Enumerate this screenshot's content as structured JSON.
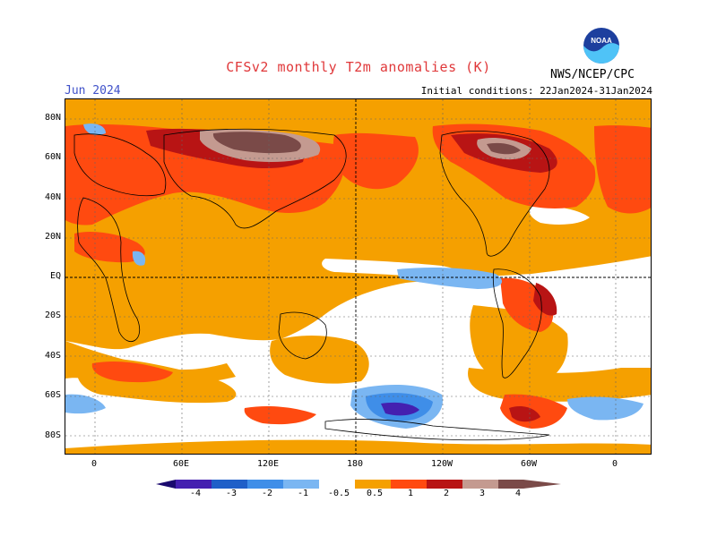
{
  "header": {
    "title": "CFSv2 monthly T2m anomalies (K)",
    "month": "Jun 2024",
    "initial_conditions": "Initial conditions: 22Jan2024-31Jan2024",
    "agency": "NWS/NCEP/CPC",
    "logo_text": "NOAA"
  },
  "axes": {
    "lat_labels": [
      "80N",
      "60N",
      "40N",
      "20N",
      "EQ",
      "20S",
      "40S",
      "60S",
      "80S"
    ],
    "lon_labels": [
      "0",
      "60E",
      "120E",
      "180",
      "120W",
      "60W",
      "0"
    ]
  },
  "legend": {
    "tick_labels": [
      "-4",
      "-3",
      "-2",
      "-1",
      "-0.5",
      "0.5",
      "1",
      "2",
      "3",
      "4"
    ],
    "colors": {
      "lt_-4": "#1a0a6e",
      "-4_-3": "#4420b0",
      "-3_-2": "#1f5fc8",
      "-2_-1": "#3f8ee8",
      "-1_-0.5": "#7ab6f2",
      "neutral": "#ffffff",
      "0.5_1": "#f5a000",
      "1_2": "#ff4a10",
      "2_3": "#b81414",
      "3_4": "#c49a90",
      "gt_4": "#7a4a48"
    }
  }
}
